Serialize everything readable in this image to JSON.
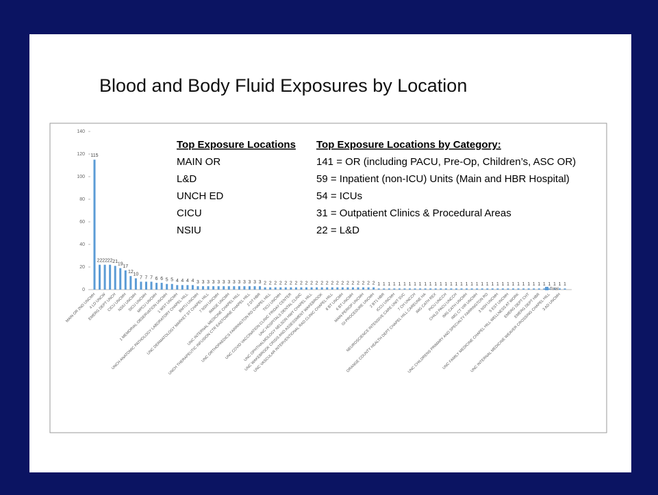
{
  "chart_data": {
    "type": "bar",
    "title": "Blood and Body Fluid Exposures by Location",
    "categories": [
      "MAIN OR 2ND UNCMH",
      null,
      "4 LD UNCW",
      null,
      "EMERG DEPT UNCH",
      null,
      "CICU UNCMH",
      null,
      "NSIU UNCMH",
      null,
      "SICU UNCMH",
      null,
      "MPCU UNCMH",
      null,
      "1 MEMORIAL OBSERVATION UNCMH",
      null,
      "1 WST UNCMH",
      null,
      "UNCH ANATOMIC PATHOLOGY LABORATORY CHAPEL HILL",
      null,
      "BMTU UNCMH",
      null,
      "UNC DERMATOLOGY MARKET ST CHAPEL HILL",
      null,
      "7 NSH UNCMH",
      null,
      "IMAGE UNCMH",
      null,
      "UNC INTERNAL MEDICINE CHAPEL HILL",
      null,
      "UNCH THERAPEUTIC INFUSION CTR EASTOWNE CHAPEL HILL",
      null,
      "2 DT HBR",
      null,
      "UNC ORTHOPAEDICS FARRINGTON RD CHAPEL HILL",
      null,
      "TICU UNCMH",
      null,
      "UNC COVID VACCINATION CLINIC FRIDAY CENTER",
      null,
      "UNC HOSPITALS DENTAL CLINIC",
      null,
      "UNC OPHTHALMOLOGY NELSON HWY CHAPEL HILL",
      null,
      "UNC WAKEBROOK CRISIS AND ASSESSMENT WAKEBROOK",
      null,
      "UNC VASCULAR INTERVENTIONAL RAD CLINIC CHAPEL HILL",
      null,
      "8 BT UNCMH",
      null,
      "6 BT UNCMH",
      null,
      "MAIN PERIOP UNCMH",
      null,
      "GI PROCEDURE UNCMH",
      null,
      "2 BT1 HBR",
      null,
      "ICCU UNCMH",
      null,
      "NEUROSCIENCE INTENSIVE CARE UNIT SVC",
      null,
      "7 CH UNCCH",
      null,
      "ORANGE COUNTY HEALTH DEPT CHAPEL HILL CAREUNE HA",
      null,
      "IMG CATH REX",
      null,
      "PICU UNCCH",
      null,
      "CHILD PACU UNCCH",
      null,
      "IMG CATH UNCMH",
      null,
      "IMG CT VIR UNCMH",
      null,
      "UNC CHILDRENS PRIMARY AND SPECIALTY FARRINGTON RD",
      null,
      "3 NSH UNCMH",
      null,
      "5 EST UNCMH",
      null,
      "UNC FAMILY MEDICINE CHAPEL HILL WELLNESS AT WORK",
      null,
      "EMERG DEPT CHT",
      null,
      "EMERG DEPT HBR",
      null,
      "UNC INTERNAL MEDICINE WEAVER CROSSING CHAPEL HILL",
      null,
      "3 AD UNCMH",
      null
    ],
    "series": [
      {
        "name": "Total",
        "color": "#5b9bd5",
        "values": [
          115,
          22,
          22,
          22,
          21,
          19,
          17,
          12,
          10,
          7,
          7,
          7,
          6,
          6,
          5,
          5,
          4,
          4,
          4,
          4,
          3,
          3,
          3,
          3,
          3,
          3,
          3,
          3,
          3,
          3,
          3,
          3,
          3,
          2,
          2,
          2,
          2,
          2,
          2,
          2,
          2,
          2,
          2,
          2,
          2,
          2,
          2,
          2,
          2,
          2,
          2,
          2,
          2,
          2,
          2,
          1,
          1,
          1,
          1,
          1,
          1,
          1,
          1,
          1,
          1,
          1,
          1,
          1,
          1,
          1,
          1,
          1,
          1,
          1,
          1,
          1,
          1,
          1,
          1,
          1,
          1,
          1,
          1,
          1,
          1,
          1,
          1,
          1,
          1,
          1,
          1,
          1
        ]
      }
    ],
    "ylim": [
      0,
      140
    ],
    "yticks": [
      0,
      20,
      40,
      60,
      80,
      100,
      120,
      140
    ],
    "legend": "bottom-right",
    "top_locations": {
      "heading": "Top Exposure Locations",
      "items": [
        "MAIN OR",
        "L&D",
        "UNCH ED",
        "CICU",
        "NSIU"
      ]
    },
    "top_categories": {
      "heading": "Top Exposure Locations by Category:",
      "items": [
        "141 = OR (including PACU, Pre-Op, Children’s, ASC OR)",
        "59 = Inpatient (non-ICU) Units (Main and HBR Hospital)",
        "54 = ICUs",
        "31 = Outpatient Clinics & Procedural Areas",
        "22 = L&D"
      ]
    }
  }
}
